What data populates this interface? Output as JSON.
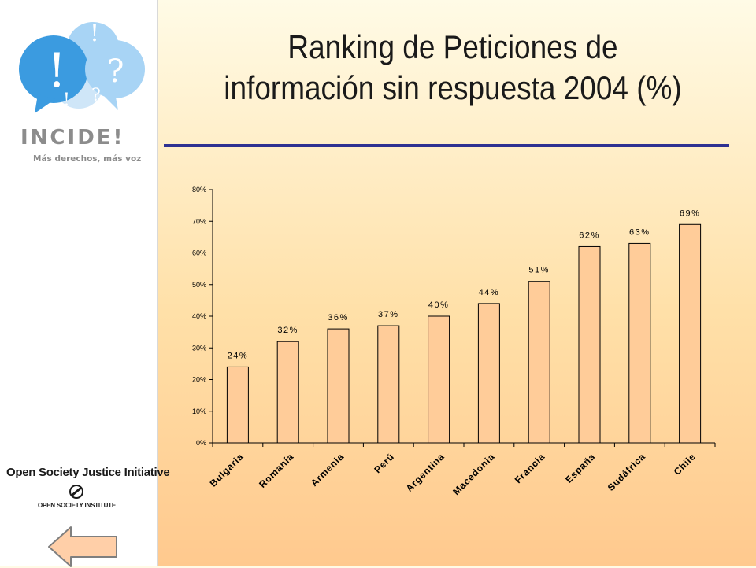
{
  "slide": {
    "title_line1": "Ranking de Peticiones de",
    "title_line2": "información sin respuesta 2004 (%)",
    "rule_color": "#2e3192"
  },
  "sidebar": {
    "logo_word": "INCIDE!",
    "logo_tagline": "Más derechos, más voz",
    "org_name": "Open Society Justice Initiative",
    "org_sub": "OPEN SOCIETY INSTITUTE",
    "back_button_icon": "left-arrow-icon"
  },
  "chart_data": {
    "type": "bar",
    "title": "",
    "xlabel": "",
    "ylabel": "",
    "categories": [
      "Bulgaria",
      "Romanía",
      "Armenia",
      "Perú",
      "Argentina",
      "Macedonia",
      "Francia",
      "España",
      "Sudáfrica",
      "Chile"
    ],
    "values": [
      24,
      32,
      36,
      37,
      40,
      44,
      51,
      62,
      63,
      69
    ],
    "data_labels": [
      "24%",
      "32%",
      "36%",
      "37%",
      "40%",
      "44%",
      "51%",
      "62%",
      "63%",
      "69%"
    ],
    "ylim": [
      0,
      80
    ],
    "yticks": [
      0,
      10,
      20,
      30,
      40,
      50,
      60,
      70,
      80
    ],
    "ytick_labels": [
      "0%",
      "10%",
      "20%",
      "30%",
      "40%",
      "50%",
      "60%",
      "70%",
      "80%"
    ],
    "grid": false,
    "legend": "none",
    "bar_color": "#ffcc99"
  }
}
